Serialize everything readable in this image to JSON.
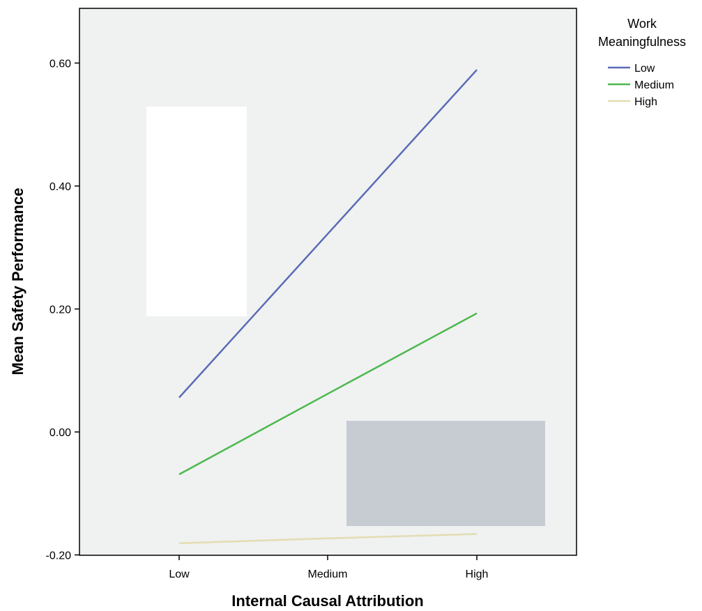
{
  "chart_data": {
    "type": "line",
    "title": "",
    "xlabel": "Internal Causal Attribution",
    "ylabel": "Mean Safety Performance",
    "categories": [
      "Low",
      "Medium",
      "High"
    ],
    "ylim": [
      -0.2,
      0.7
    ],
    "yticks": [
      "-0.20",
      "0.00",
      "0.20",
      "0.40",
      "0.60"
    ],
    "ytick_values": [
      -0.2,
      0.0,
      0.2,
      0.4,
      0.6
    ],
    "grid": false,
    "legend": {
      "title_line1": "Work",
      "title_line2": "Meaningfulness",
      "placement": "right"
    },
    "series": [
      {
        "name": "Low",
        "values": [
          0.056,
          0.322,
          0.589
        ],
        "color": "#5b6bb5"
      },
      {
        "name": "Medium",
        "values": [
          -0.069,
          0.062,
          0.193
        ],
        "color": "#4cb84e"
      },
      {
        "name": "High",
        "values": [
          -0.181,
          -0.173,
          -0.166
        ],
        "color": "#e2ddb2"
      }
    ],
    "colors": {
      "plot_background": "#f0f1f1",
      "occluder_white": "#ffffff",
      "occluder_gray": "#c6ccd2"
    }
  }
}
